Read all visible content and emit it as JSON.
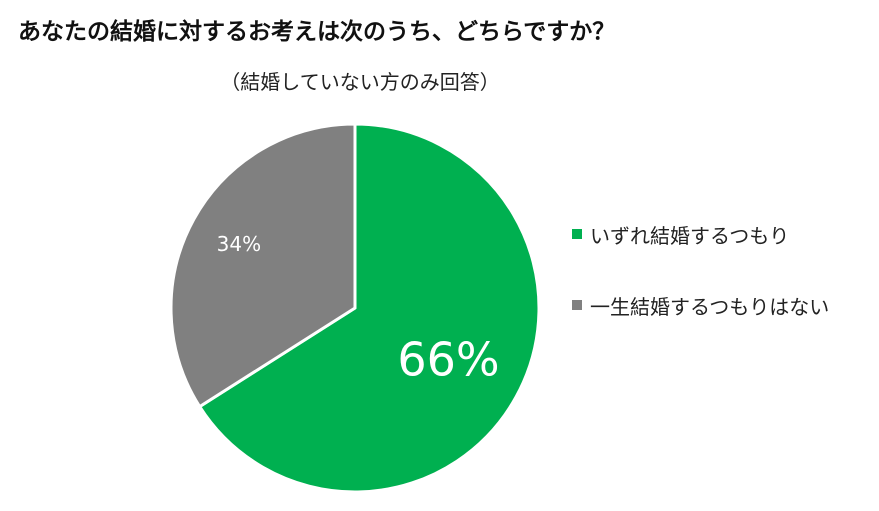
{
  "chart_data": {
    "type": "pie",
    "title": "あなたの結婚に対するお考えは次のうち、どちらですか？",
    "subtitle": "（結婚していない方のみ回答）",
    "categories": [
      "いずれ結婚するつもり",
      "一生結婚するつもりはない"
    ],
    "values": [
      66,
      34
    ],
    "value_labels": [
      "66%",
      "34%"
    ],
    "colors": [
      "#00b050",
      "#808080"
    ],
    "legend_position": "right",
    "start_angle_deg": 0,
    "direction": "clockwise"
  }
}
